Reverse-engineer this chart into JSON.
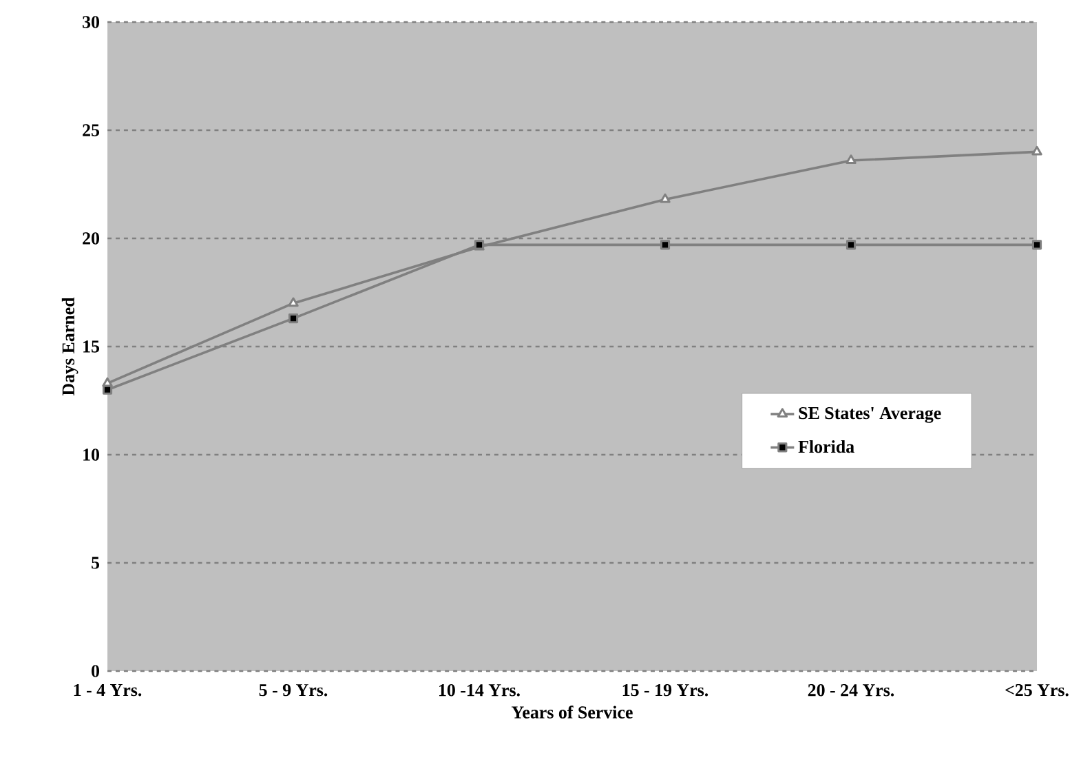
{
  "chart_data": {
    "type": "line",
    "xlabel": "Years of Service",
    "ylabel": "Days Earned",
    "categories": [
      "1 - 4 Yrs.",
      "5 - 9 Yrs.",
      "10 -14 Yrs.",
      "15 - 19 Yrs.",
      "20 - 24 Yrs.",
      "<25 Yrs."
    ],
    "series": [
      {
        "name": "SE States' Average",
        "color": "#808080",
        "marker": "triangle",
        "values": [
          13.3,
          17.0,
          19.6,
          21.8,
          23.6,
          24.0
        ]
      },
      {
        "name": "Florida",
        "color": "#808080",
        "marker": "square",
        "values": [
          13.0,
          16.3,
          19.7,
          19.7,
          19.7,
          19.7
        ]
      }
    ],
    "ylim": [
      0,
      30
    ],
    "yticks": [
      0,
      5,
      10,
      15,
      20,
      25,
      30
    ],
    "grid": "y",
    "legend": "right",
    "line_style": "solid"
  }
}
